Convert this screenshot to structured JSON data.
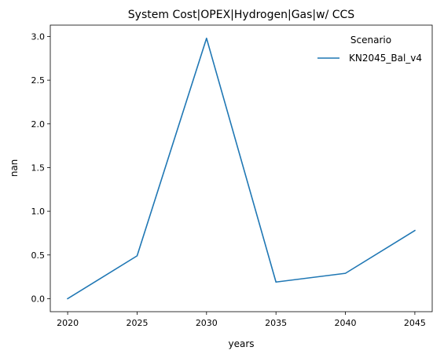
{
  "chart_data": {
    "type": "line",
    "title": "System Cost|OPEX|Hydrogen|Gas|w/ CCS",
    "xlabel": "years",
    "ylabel": "nan",
    "x": [
      2020,
      2025,
      2030,
      2035,
      2040,
      2045
    ],
    "xticks": [
      "2020",
      "2025",
      "2030",
      "2035",
      "2040",
      "2045"
    ],
    "yticks": [
      "0.0",
      "0.5",
      "1.0",
      "1.5",
      "2.0",
      "2.5",
      "3.0"
    ],
    "xlim": [
      2018.75,
      2046.25
    ],
    "ylim": [
      -0.149,
      3.13
    ],
    "grid": false,
    "legend": {
      "title": "Scenario",
      "placement": "top-right"
    },
    "series": [
      {
        "name": "KN2045_Bal_v4",
        "color": "#1f77b4",
        "values": [
          0.0,
          0.49,
          2.98,
          0.19,
          0.29,
          0.78
        ]
      }
    ]
  }
}
